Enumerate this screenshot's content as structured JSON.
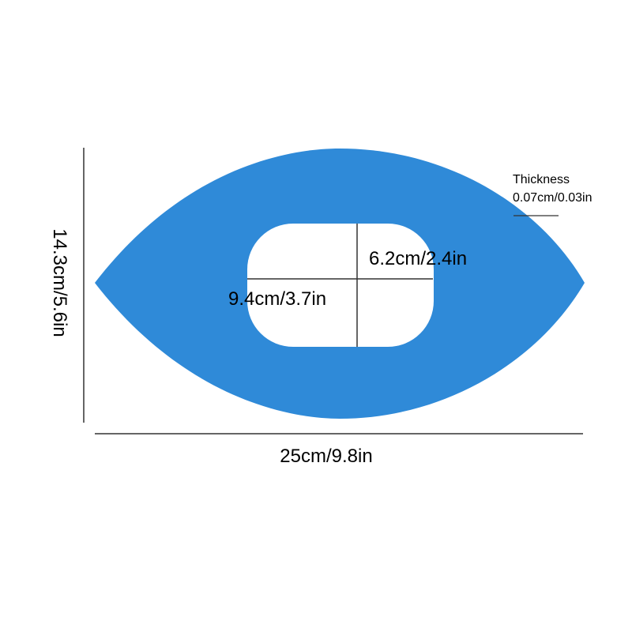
{
  "product": {
    "color": "#2f8ad8",
    "hole_color": "#ffffff"
  },
  "dimensions": {
    "width": "25cm/9.8in",
    "height": "14.3cm/5.6in",
    "hole_width": "9.4cm/3.7in",
    "hole_height": "6.2cm/2.4in",
    "thickness_title": "Thickness",
    "thickness_value": "0.07cm/0.03in"
  }
}
